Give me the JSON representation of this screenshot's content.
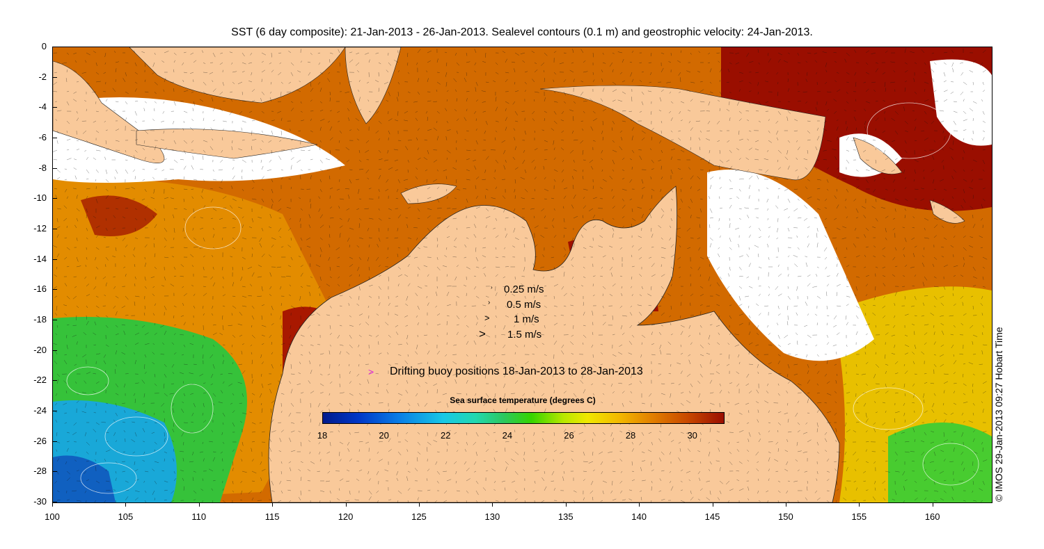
{
  "title": "SST (6 day composite): 21-Jan-2013 - 26-Jan-2013. Sealevel contours (0.1 m) and geostrophic velocity: 24-Jan-2013.",
  "axes": {
    "x_ticks": [
      "100",
      "105",
      "110",
      "115",
      "120",
      "125",
      "130",
      "135",
      "140",
      "145",
      "150",
      "155",
      "160"
    ],
    "x_range": [
      100,
      164
    ],
    "y_ticks": [
      "0",
      "-2",
      "-4",
      "-6",
      "-8",
      "-10",
      "-12",
      "-14",
      "-16",
      "-18",
      "-20",
      "-22",
      "-24",
      "-26",
      "-28",
      "-30"
    ],
    "y_range": [
      0,
      -30
    ]
  },
  "velocity_legend": [
    "0.25 m/s",
    "0.5 m/s",
    "1 m/s",
    "1.5 m/s"
  ],
  "buoy_legend": {
    "glyph": ">",
    "label": "Drifting buoy positions 18-Jan-2013 to 28-Jan-2013",
    "color": "#e020e0"
  },
  "colorbar": {
    "title": "Sea surface temperature (degrees C)",
    "ticks": [
      "18",
      "20",
      "22",
      "24",
      "26",
      "28",
      "30"
    ],
    "range": [
      18,
      31
    ]
  },
  "credit": "© IMOS 29-Jan-2013 09:27 Hobart Time",
  "colors": {
    "land": "#f9c99a",
    "cloud": "#ffffff",
    "warm": "#b83800",
    "hot": "#9a0e00",
    "mid": "#e08000",
    "cool": "#36c800"
  }
}
